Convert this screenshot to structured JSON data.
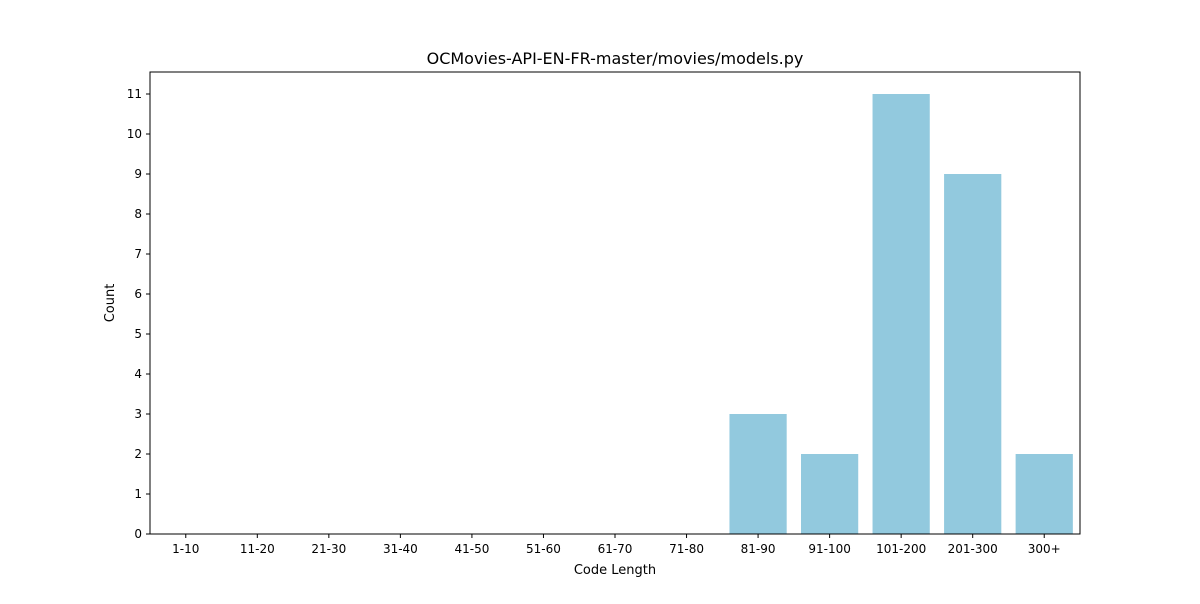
{
  "chart_data": {
    "type": "bar",
    "title": "OCMovies-API-EN-FR-master/movies/models.py",
    "xlabel": "Code Length",
    "ylabel": "Count",
    "categories": [
      "1-10",
      "11-20",
      "21-30",
      "31-40",
      "41-50",
      "51-60",
      "61-70",
      "71-80",
      "81-90",
      "91-100",
      "101-200",
      "201-300",
      "300+"
    ],
    "values": [
      0,
      0,
      0,
      0,
      0,
      0,
      0,
      0,
      3,
      2,
      11,
      9,
      2
    ],
    "ylim": [
      0,
      11.55
    ],
    "yticks": [
      0,
      1,
      2,
      3,
      4,
      5,
      6,
      7,
      8,
      9,
      10,
      11
    ],
    "grid": false,
    "bar_color": "#92c9de"
  }
}
